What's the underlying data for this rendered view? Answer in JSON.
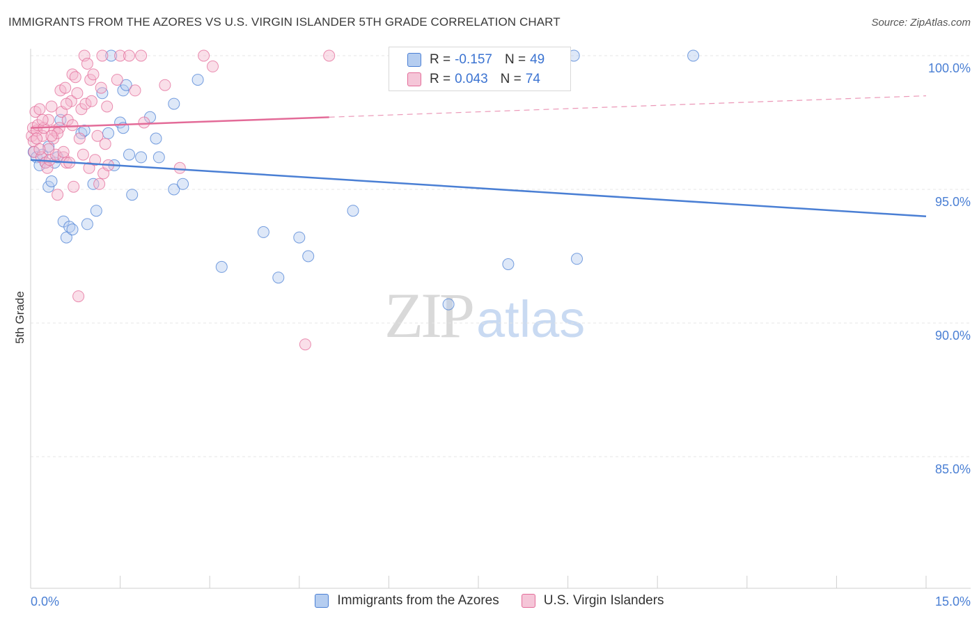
{
  "title": "IMMIGRANTS FROM THE AZORES VS U.S. VIRGIN ISLANDER 5TH GRADE CORRELATION CHART",
  "source": "Source: ZipAtlas.com",
  "watermark": {
    "zip": "ZIP",
    "atlas": "atlas"
  },
  "legend": {
    "blue": {
      "r_label": "R =",
      "r_value": "-0.157",
      "n_label": "N =",
      "n_value": "49"
    },
    "pink": {
      "r_label": "R =",
      "r_value": "0.043",
      "n_label": "N =",
      "n_value": "74"
    }
  },
  "bottom_legend": {
    "blue": "Immigrants from the Azores",
    "pink": "U.S. Virgin Islanders"
  },
  "colors": {
    "blue": "#4a7fd4",
    "blue_fill": "#b5cdf0",
    "pink": "#e36b98",
    "pink_fill": "#f5b8cf",
    "grid": "#e4e4e4"
  },
  "chart_data": {
    "type": "scatter",
    "xlabel": "",
    "ylabel": "5th Grade",
    "xlim": [
      0.0,
      15.0
    ],
    "ylim": [
      80.0,
      100.5
    ],
    "x_tick_labels": [
      "0.0%",
      "15.0%"
    ],
    "y_ticks": [
      85.0,
      90.0,
      95.0,
      100.0
    ],
    "y_tick_labels": [
      "85.0%",
      "90.0%",
      "95.0%",
      "100.0%"
    ],
    "series": [
      {
        "name": "Immigrants from the Azores",
        "color": "blue",
        "trend": {
          "x0": 0.0,
          "y0": 96.1,
          "x1": 15.0,
          "y1": 93.99,
          "dashed_from": null
        },
        "points": [
          [
            0.05,
            96.4
          ],
          [
            0.1,
            96.2
          ],
          [
            0.15,
            95.9
          ],
          [
            0.2,
            96.3
          ],
          [
            0.25,
            96.0
          ],
          [
            0.3,
            95.1
          ],
          [
            0.35,
            95.3
          ],
          [
            0.4,
            96.0
          ],
          [
            0.45,
            96.2
          ],
          [
            0.5,
            97.6
          ],
          [
            0.55,
            93.8
          ],
          [
            0.6,
            93.2
          ],
          [
            0.65,
            93.6
          ],
          [
            0.7,
            93.5
          ],
          [
            0.85,
            97.1
          ],
          [
            0.9,
            97.2
          ],
          [
            0.95,
            93.7
          ],
          [
            1.05,
            95.2
          ],
          [
            1.1,
            94.2
          ],
          [
            1.2,
            98.6
          ],
          [
            1.3,
            97.1
          ],
          [
            1.35,
            100.0
          ],
          [
            1.4,
            95.9
          ],
          [
            1.5,
            97.5
          ],
          [
            1.55,
            97.3
          ],
          [
            1.55,
            98.7
          ],
          [
            1.6,
            98.9
          ],
          [
            1.65,
            96.3
          ],
          [
            1.7,
            94.8
          ],
          [
            1.85,
            96.2
          ],
          [
            2.0,
            97.7
          ],
          [
            2.1,
            96.9
          ],
          [
            2.15,
            96.2
          ],
          [
            2.4,
            98.2
          ],
          [
            2.4,
            95.0
          ],
          [
            2.55,
            95.2
          ],
          [
            2.8,
            99.1
          ],
          [
            3.2,
            92.1
          ],
          [
            3.9,
            93.4
          ],
          [
            4.15,
            91.7
          ],
          [
            4.5,
            93.2
          ],
          [
            4.65,
            92.5
          ],
          [
            5.4,
            94.2
          ],
          [
            7.0,
            90.7
          ],
          [
            8.0,
            92.2
          ],
          [
            9.1,
            100.0
          ],
          [
            9.15,
            92.4
          ],
          [
            11.1,
            100.0
          ],
          [
            0.3,
            96.6
          ]
        ]
      },
      {
        "name": "U.S. Virgin Islanders",
        "color": "pink",
        "trend": {
          "x0": 0.0,
          "y0": 97.3,
          "x1": 15.0,
          "y1": 98.5,
          "dashed_from": 5.0
        },
        "points": [
          [
            0.02,
            97.0
          ],
          [
            0.04,
            97.3
          ],
          [
            0.05,
            96.8
          ],
          [
            0.06,
            96.4
          ],
          [
            0.08,
            97.9
          ],
          [
            0.1,
            97.2
          ],
          [
            0.12,
            97.4
          ],
          [
            0.15,
            98.0
          ],
          [
            0.18,
            96.2
          ],
          [
            0.2,
            97.0
          ],
          [
            0.22,
            97.3
          ],
          [
            0.25,
            96.0
          ],
          [
            0.28,
            95.8
          ],
          [
            0.3,
            97.6
          ],
          [
            0.32,
            96.1
          ],
          [
            0.35,
            98.1
          ],
          [
            0.38,
            96.9
          ],
          [
            0.4,
            97.2
          ],
          [
            0.42,
            96.3
          ],
          [
            0.45,
            94.8
          ],
          [
            0.48,
            97.3
          ],
          [
            0.5,
            98.7
          ],
          [
            0.52,
            97.9
          ],
          [
            0.55,
            96.2
          ],
          [
            0.58,
            98.8
          ],
          [
            0.6,
            96.0
          ],
          [
            0.62,
            97.6
          ],
          [
            0.65,
            96.0
          ],
          [
            0.68,
            98.3
          ],
          [
            0.7,
            99.3
          ],
          [
            0.72,
            95.1
          ],
          [
            0.75,
            99.2
          ],
          [
            0.78,
            98.6
          ],
          [
            0.8,
            91.0
          ],
          [
            0.82,
            96.9
          ],
          [
            0.85,
            98.0
          ],
          [
            0.88,
            96.3
          ],
          [
            0.9,
            100.0
          ],
          [
            0.92,
            98.2
          ],
          [
            0.95,
            99.7
          ],
          [
            0.98,
            95.8
          ],
          [
            1.0,
            99.1
          ],
          [
            1.02,
            98.3
          ],
          [
            1.05,
            99.3
          ],
          [
            1.08,
            96.1
          ],
          [
            1.12,
            97.0
          ],
          [
            1.15,
            95.2
          ],
          [
            1.18,
            98.8
          ],
          [
            1.2,
            100.0
          ],
          [
            1.22,
            95.6
          ],
          [
            1.25,
            96.7
          ],
          [
            1.28,
            98.1
          ],
          [
            1.3,
            95.9
          ],
          [
            1.45,
            99.1
          ],
          [
            1.5,
            100.0
          ],
          [
            1.65,
            100.0
          ],
          [
            1.75,
            98.7
          ],
          [
            1.85,
            100.0
          ],
          [
            1.9,
            97.5
          ],
          [
            2.25,
            98.9
          ],
          [
            2.5,
            95.8
          ],
          [
            2.9,
            100.0
          ],
          [
            3.05,
            99.6
          ],
          [
            4.6,
            89.2
          ],
          [
            5.0,
            100.0
          ],
          [
            0.1,
            96.9
          ],
          [
            0.2,
            97.6
          ],
          [
            0.3,
            96.5
          ],
          [
            0.45,
            97.1
          ],
          [
            0.6,
            98.2
          ],
          [
            0.7,
            97.4
          ],
          [
            0.55,
            96.4
          ],
          [
            0.35,
            97.0
          ],
          [
            0.15,
            96.5
          ]
        ]
      }
    ]
  }
}
